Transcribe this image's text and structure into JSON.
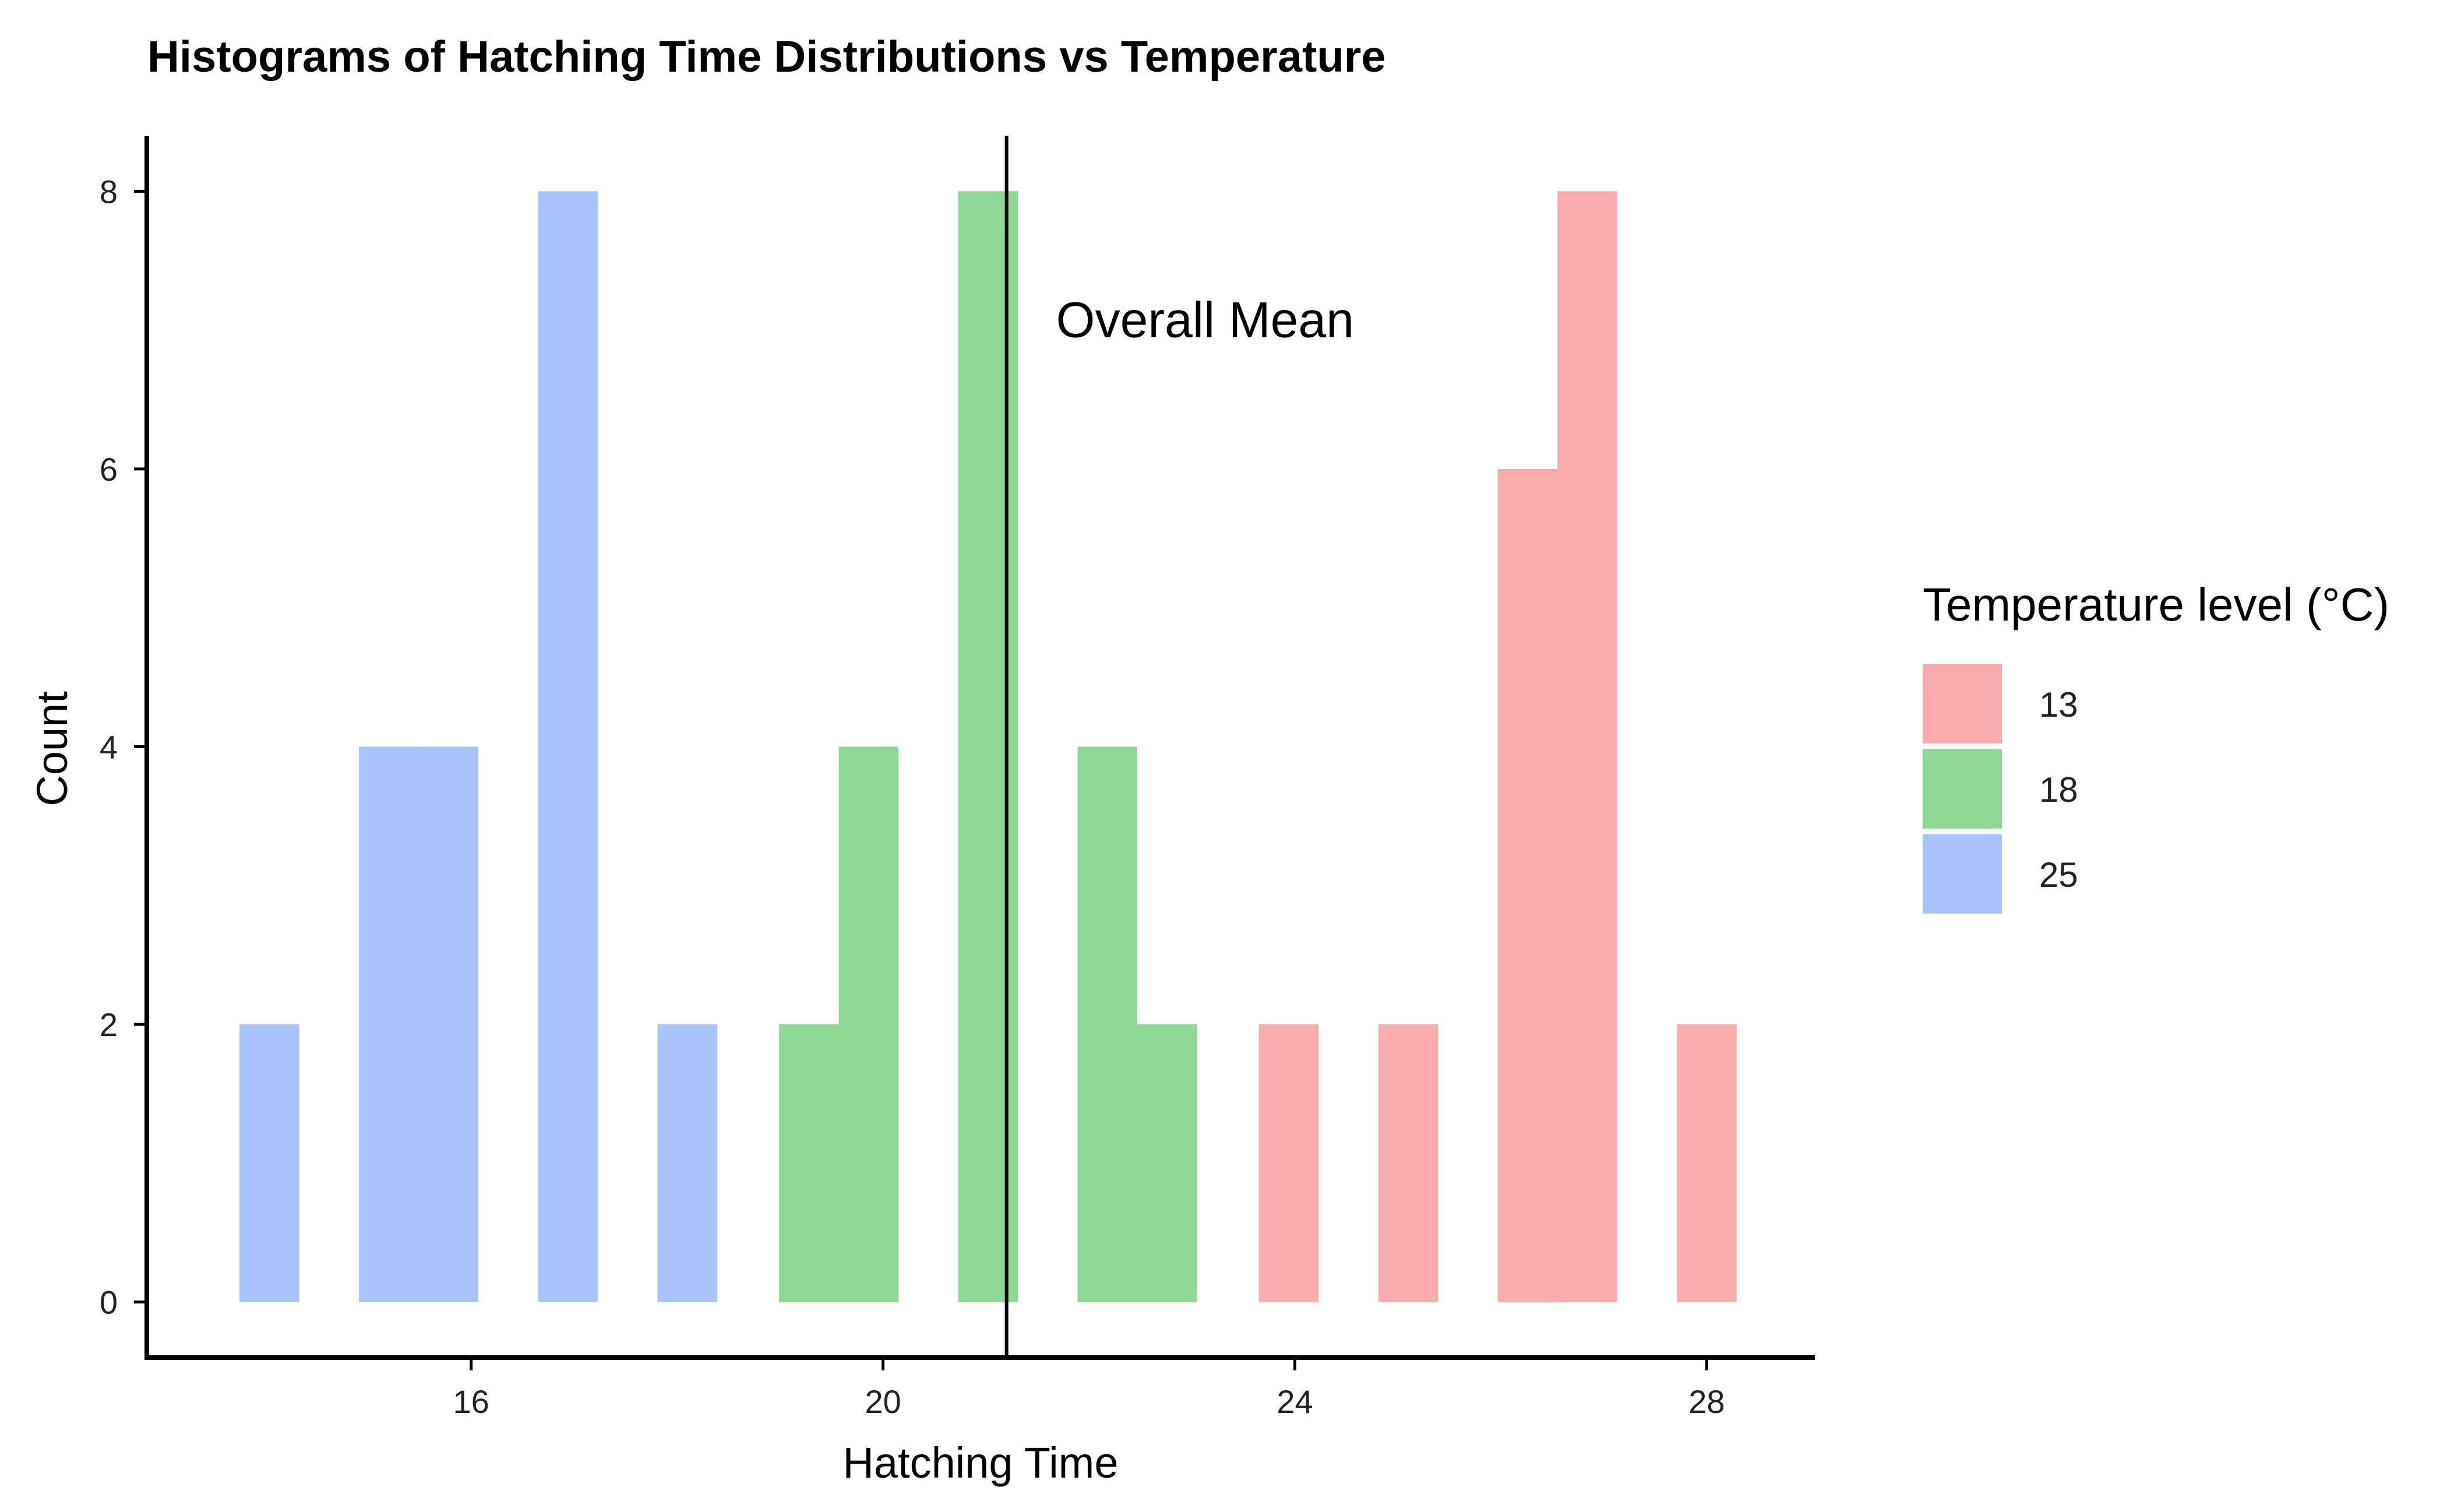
{
  "chart_data": {
    "type": "bar",
    "title": "Histograms of Hatching Time Distributions vs Temperature",
    "xlabel": "Hatching Time",
    "ylabel": "Count",
    "xlim": [
      12.85,
      29.05
    ],
    "ylim": [
      -0.4,
      8.4
    ],
    "x_ticks": [
      16,
      20,
      24,
      28
    ],
    "y_ticks": [
      0,
      2,
      4,
      6,
      8
    ],
    "bin_width": 0.58,
    "grid": false,
    "legend": {
      "title": "Temperature level (°C)",
      "placement": "right"
    },
    "series": [
      {
        "name": "13",
        "color": "#F8ACAC",
        "bins": [
          {
            "x0": 23.65,
            "x1": 24.23,
            "count": 2
          },
          {
            "x0": 24.81,
            "x1": 25.39,
            "count": 2
          },
          {
            "x0": 25.97,
            "x1": 26.55,
            "count": 6
          },
          {
            "x0": 26.55,
            "x1": 27.13,
            "count": 8
          },
          {
            "x0": 27.71,
            "x1": 28.29,
            "count": 2
          }
        ]
      },
      {
        "name": "18",
        "color": "#8CD894",
        "bins": [
          {
            "x0": 18.99,
            "x1": 19.57,
            "count": 2
          },
          {
            "x0": 19.57,
            "x1": 20.15,
            "count": 4
          },
          {
            "x0": 20.73,
            "x1": 21.31,
            "count": 8
          },
          {
            "x0": 21.89,
            "x1": 22.47,
            "count": 4
          },
          {
            "x0": 22.47,
            "x1": 23.05,
            "count": 2
          }
        ]
      },
      {
        "name": "25",
        "color": "#A9C3FB",
        "bins": [
          {
            "x0": 13.75,
            "x1": 14.33,
            "count": 2
          },
          {
            "x0": 14.91,
            "x1": 15.49,
            "count": 4
          },
          {
            "x0": 15.49,
            "x1": 16.07,
            "count": 4
          },
          {
            "x0": 16.65,
            "x1": 17.23,
            "count": 8
          },
          {
            "x0": 17.81,
            "x1": 18.39,
            "count": 2
          }
        ]
      }
    ],
    "reference_line": {
      "x": 21.2,
      "label": "Overall Mean"
    }
  }
}
